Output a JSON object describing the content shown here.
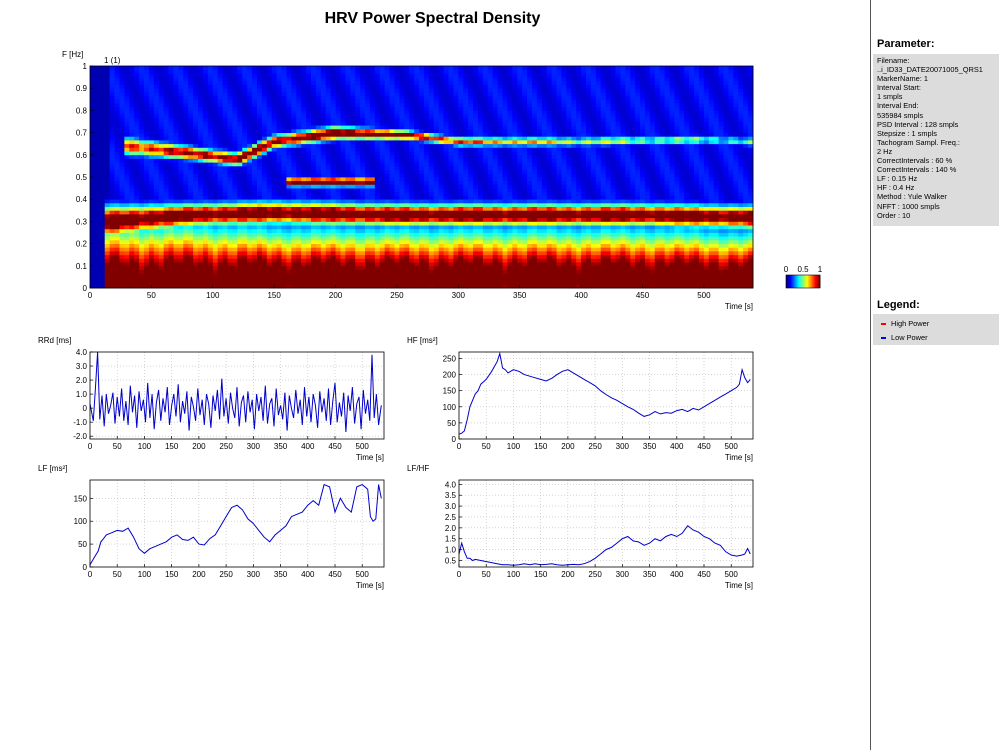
{
  "title": "HRV Power Spectral Density",
  "side_panel": {
    "parameter_title": "Parameter:",
    "parameters": [
      "Filename:",
      "..i_ID33_DATE20071005_QRS1",
      "MarkerName: 1",
      "Interval Start:",
      "1 smpls",
      "Interval End:",
      "535984 smpls",
      "PSD Interval : 128 smpls",
      "Stepsize : 1 smpls",
      "Tachogram Sampl. Freq.:",
      "2 Hz",
      "CorrectIntervals : 60 %",
      "CorrectIntervals : 140 %",
      "LF : 0.15 Hz",
      "HF : 0.4 Hz",
      "Method : Yule Walker",
      "NFFT : 1000 smpls",
      "Order : 10"
    ],
    "legend_title": "Legend:",
    "legend": [
      {
        "label": "High Power",
        "color": "#ff0000"
      },
      {
        "label": "Low Power",
        "color": "#0000ff"
      }
    ]
  },
  "chart_data": [
    {
      "type": "heatmap",
      "id": "spectrogram",
      "marker_label": "1 (1)",
      "ylabel": "F [Hz]",
      "xlabel": "Time [s]",
      "xlim": [
        0,
        540
      ],
      "ylim": [
        0,
        1
      ],
      "xticks": [
        0,
        50,
        100,
        150,
        200,
        250,
        300,
        350,
        400,
        450,
        500
      ],
      "yticks": [
        0,
        0.1,
        0.2,
        0.3,
        0.4,
        0.5,
        0.6,
        0.7,
        0.8,
        0.9,
        1
      ],
      "colorbar": {
        "ticks": [
          "0",
          "0.5",
          "1"
        ],
        "colormap": "jet"
      },
      "bands": [
        {
          "name": "VLF",
          "points": [
            [
              15,
              0.03
            ],
            [
              80,
              0.03
            ],
            [
              150,
              0.04
            ],
            [
              300,
              0.04
            ],
            [
              450,
              0.04
            ],
            [
              535,
              0.04
            ]
          ],
          "width": [
            0.25,
            0.25,
            0.22,
            0.22,
            0.22,
            0.2
          ],
          "intensity": [
            1,
            1,
            1,
            1,
            1,
            1
          ]
        },
        {
          "name": "low-freq",
          "points": [
            [
              15,
              0.3
            ],
            [
              80,
              0.33
            ],
            [
              150,
              0.34
            ],
            [
              250,
              0.33
            ],
            [
              350,
              0.33
            ],
            [
              450,
              0.33
            ],
            [
              535,
              0.32
            ]
          ],
          "width": [
            0.07,
            0.05,
            0.05,
            0.05,
            0.05,
            0.05,
            0.05
          ],
          "intensity": [
            1,
            1,
            1,
            1,
            1,
            1,
            1
          ]
        },
        {
          "name": "high-freq",
          "points": [
            [
              30,
              0.64
            ],
            [
              80,
              0.61
            ],
            [
              120,
              0.58
            ],
            [
              150,
              0.66
            ],
            [
              200,
              0.7
            ],
            [
              260,
              0.69
            ],
            [
              300,
              0.66
            ],
            [
              400,
              0.66
            ],
            [
              500,
              0.67
            ],
            [
              535,
              0.66
            ]
          ],
          "width": [
            0.04,
            0.03,
            0.03,
            0.03,
            0.03,
            0.02,
            0.02,
            0.02,
            0.02,
            0.02
          ],
          "intensity": [
            0.75,
            0.85,
            0.95,
            0.9,
            1,
            0.95,
            0.7,
            0.5,
            0.4,
            0.35
          ]
        },
        {
          "name": "island",
          "points": [
            [
              165,
              0.48
            ],
            [
              230,
              0.48
            ]
          ],
          "width": [
            0.02,
            0.02
          ],
          "intensity": [
            1,
            1
          ]
        }
      ]
    },
    {
      "type": "line",
      "id": "rrd",
      "ylabel": "RRd [ms]",
      "xlabel": "Time [s]",
      "xlim": [
        0,
        540
      ],
      "ylim": [
        -2.2,
        4
      ],
      "xticks": [
        0,
        50,
        100,
        150,
        200,
        250,
        300,
        350,
        400,
        450,
        500
      ],
      "yticks": [
        -2,
        -1,
        0,
        1,
        2,
        3,
        4
      ],
      "ytick_labels": [
        "-2.0",
        "-1.0",
        "0",
        "1.0",
        "2.0",
        "3.0",
        "4.0"
      ],
      "series": [
        {
          "color": "#0000cc",
          "x": [
            0,
            6,
            10,
            14,
            18,
            22,
            26,
            30,
            34,
            38,
            42,
            46,
            50,
            54,
            58,
            62,
            66,
            70,
            74,
            78,
            82,
            86,
            90,
            94,
            98,
            102,
            106,
            110,
            114,
            118,
            122,
            126,
            130,
            134,
            138,
            142,
            146,
            150,
            154,
            158,
            162,
            166,
            170,
            174,
            178,
            182,
            186,
            190,
            194,
            198,
            202,
            206,
            210,
            214,
            218,
            222,
            226,
            230,
            234,
            238,
            242,
            246,
            250,
            254,
            258,
            262,
            266,
            270,
            274,
            278,
            282,
            286,
            290,
            294,
            298,
            302,
            306,
            310,
            314,
            318,
            322,
            326,
            330,
            334,
            338,
            342,
            346,
            350,
            354,
            358,
            362,
            366,
            370,
            374,
            378,
            382,
            386,
            390,
            394,
            398,
            402,
            406,
            410,
            414,
            418,
            422,
            426,
            430,
            434,
            438,
            442,
            446,
            450,
            454,
            458,
            462,
            466,
            470,
            474,
            478,
            482,
            486,
            490,
            494,
            498,
            502,
            506,
            510,
            514,
            518,
            522,
            526,
            530,
            535
          ],
          "y": [
            0.3,
            -0.9,
            1.4,
            4.0,
            -0.8,
            0.9,
            -1.3,
            1.0,
            -0.4,
            0.2,
            1.1,
            -1.1,
            0.8,
            -0.6,
            1.4,
            -0.9,
            0.5,
            -1.2,
            1.6,
            -0.3,
            0.9,
            -1.4,
            1.2,
            -0.2,
            0.6,
            -1.0,
            1.8,
            -0.7,
            1.0,
            -1.5,
            0.4,
            1.3,
            -0.9,
            0.7,
            -0.3,
            1.5,
            -1.2,
            0.2,
            1.0,
            -0.6,
            1.7,
            -1.0,
            0.5,
            -0.4,
            1.2,
            -1.6,
            0.8,
            0.1,
            -0.9,
            1.4,
            -0.5,
            0.6,
            -1.2,
            1.0,
            0.3,
            -1.4,
            0.9,
            -0.2,
            1.3,
            -0.8,
            2.1,
            -0.6,
            0.7,
            -1.1,
            1.1,
            0.0,
            -0.7,
            1.5,
            -1.3,
            0.4,
            0.9,
            -1.0,
            1.2,
            -0.3,
            0.6,
            -1.5,
            1.0,
            -0.2,
            0.8,
            -0.9,
            1.6,
            -1.1,
            0.3,
            0.7,
            -1.3,
            1.4,
            -0.5,
            0.2,
            -0.8,
            1.1,
            -1.6,
            0.9,
            0.0,
            -0.7,
            1.3,
            -0.4,
            0.6,
            -1.2,
            1.5,
            -0.6,
            0.8,
            -1.0,
            1.0,
            0.2,
            -1.4,
            1.2,
            -0.3,
            0.7,
            -0.9,
            1.4,
            -1.2,
            0.5,
            1.8,
            -1.0,
            0.4,
            -0.6,
            1.1,
            -1.7,
            0.9,
            -0.2,
            1.5,
            -1.1,
            0.3,
            0.8,
            -1.5,
            1.3,
            -0.4,
            0.6,
            -0.9,
            3.8,
            -0.7,
            1.0,
            -1.2,
            0.2
          ]
        }
      ]
    },
    {
      "type": "line",
      "id": "hf",
      "ylabel": "HF [ms²]",
      "xlabel": "Time [s]",
      "xlim": [
        0,
        540
      ],
      "ylim": [
        0,
        270
      ],
      "xticks": [
        0,
        50,
        100,
        150,
        200,
        250,
        300,
        350,
        400,
        450,
        500
      ],
      "yticks": [
        0,
        50,
        100,
        150,
        200,
        250
      ],
      "ytick_labels": [
        "0",
        "50",
        "100",
        "150",
        "200",
        "250"
      ],
      "series": [
        {
          "color": "#0000cc",
          "x": [
            0,
            5,
            10,
            15,
            20,
            25,
            30,
            35,
            40,
            50,
            60,
            70,
            75,
            80,
            85,
            90,
            100,
            110,
            120,
            130,
            140,
            150,
            160,
            170,
            180,
            190,
            200,
            210,
            220,
            230,
            240,
            250,
            260,
            270,
            280,
            290,
            300,
            310,
            320,
            330,
            340,
            350,
            360,
            370,
            380,
            390,
            400,
            410,
            420,
            430,
            440,
            450,
            460,
            470,
            480,
            490,
            500,
            510,
            515,
            520,
            525,
            530,
            535
          ],
          "y": [
            15,
            18,
            25,
            60,
            100,
            120,
            140,
            150,
            170,
            185,
            210,
            240,
            265,
            220,
            215,
            205,
            215,
            210,
            200,
            195,
            190,
            185,
            180,
            188,
            200,
            210,
            215,
            205,
            195,
            185,
            175,
            165,
            150,
            138,
            128,
            120,
            110,
            100,
            92,
            80,
            70,
            75,
            85,
            78,
            82,
            80,
            88,
            92,
            85,
            95,
            90,
            100,
            110,
            120,
            130,
            140,
            150,
            160,
            170,
            215,
            190,
            175,
            185
          ]
        }
      ]
    },
    {
      "type": "line",
      "id": "lf",
      "ylabel": "LF [ms²]",
      "xlabel": "Time [s]",
      "xlim": [
        0,
        540
      ],
      "ylim": [
        0,
        190
      ],
      "xticks": [
        0,
        50,
        100,
        150,
        200,
        250,
        300,
        350,
        400,
        450,
        500
      ],
      "yticks": [
        0,
        50,
        100,
        150
      ],
      "ytick_labels": [
        "0",
        "50",
        "100",
        "150"
      ],
      "series": [
        {
          "color": "#0000cc",
          "x": [
            0,
            5,
            10,
            15,
            20,
            25,
            30,
            40,
            50,
            60,
            70,
            80,
            90,
            100,
            110,
            120,
            130,
            140,
            150,
            160,
            170,
            180,
            190,
            200,
            210,
            220,
            230,
            240,
            250,
            260,
            270,
            280,
            290,
            300,
            310,
            320,
            330,
            340,
            350,
            360,
            370,
            380,
            390,
            400,
            410,
            420,
            430,
            440,
            450,
            460,
            470,
            480,
            490,
            500,
            510,
            515,
            520,
            525,
            530,
            535
          ],
          "y": [
            5,
            15,
            25,
            35,
            55,
            62,
            70,
            75,
            80,
            78,
            85,
            65,
            40,
            30,
            40,
            45,
            50,
            55,
            65,
            70,
            60,
            58,
            65,
            50,
            48,
            62,
            70,
            90,
            110,
            130,
            135,
            125,
            105,
            95,
            80,
            65,
            55,
            70,
            80,
            90,
            110,
            115,
            120,
            135,
            145,
            135,
            180,
            175,
            120,
            150,
            130,
            120,
            175,
            180,
            170,
            110,
            100,
            105,
            180,
            150
          ]
        }
      ]
    },
    {
      "type": "line",
      "id": "lfhf",
      "ylabel": "LF/HF",
      "xlabel": "Time [s]",
      "xlim": [
        0,
        540
      ],
      "ylim": [
        0.2,
        4.2
      ],
      "xticks": [
        0,
        50,
        100,
        150,
        200,
        250,
        300,
        350,
        400,
        450,
        500
      ],
      "yticks": [
        0.5,
        1,
        1.5,
        2,
        2.5,
        3,
        3.5,
        4
      ],
      "ytick_labels": [
        "0.5",
        "1.0",
        "1.5",
        "2.0",
        "2.5",
        "3.0",
        "3.5",
        "4.0"
      ],
      "series": [
        {
          "color": "#0000cc",
          "x": [
            0,
            5,
            10,
            15,
            20,
            25,
            30,
            40,
            50,
            60,
            70,
            80,
            90,
            100,
            110,
            120,
            130,
            140,
            150,
            160,
            170,
            180,
            190,
            200,
            210,
            220,
            230,
            240,
            250,
            260,
            270,
            280,
            290,
            300,
            310,
            320,
            330,
            340,
            350,
            360,
            370,
            380,
            390,
            400,
            410,
            420,
            430,
            440,
            450,
            460,
            470,
            480,
            490,
            500,
            510,
            520,
            525,
            530,
            535
          ],
          "y": [
            0.8,
            1.3,
            0.9,
            0.6,
            0.6,
            0.5,
            0.55,
            0.5,
            0.45,
            0.4,
            0.35,
            0.3,
            0.3,
            0.28,
            0.3,
            0.35,
            0.3,
            0.35,
            0.3,
            0.32,
            0.35,
            0.3,
            0.28,
            0.3,
            0.32,
            0.3,
            0.35,
            0.45,
            0.6,
            0.8,
            1.0,
            1.1,
            1.3,
            1.5,
            1.6,
            1.4,
            1.35,
            1.2,
            1.3,
            1.5,
            1.4,
            1.6,
            1.7,
            1.6,
            1.75,
            2.1,
            1.9,
            1.8,
            1.6,
            1.5,
            1.3,
            1.2,
            0.9,
            0.75,
            0.7,
            0.75,
            0.8,
            1.05,
            0.8
          ]
        }
      ]
    }
  ]
}
